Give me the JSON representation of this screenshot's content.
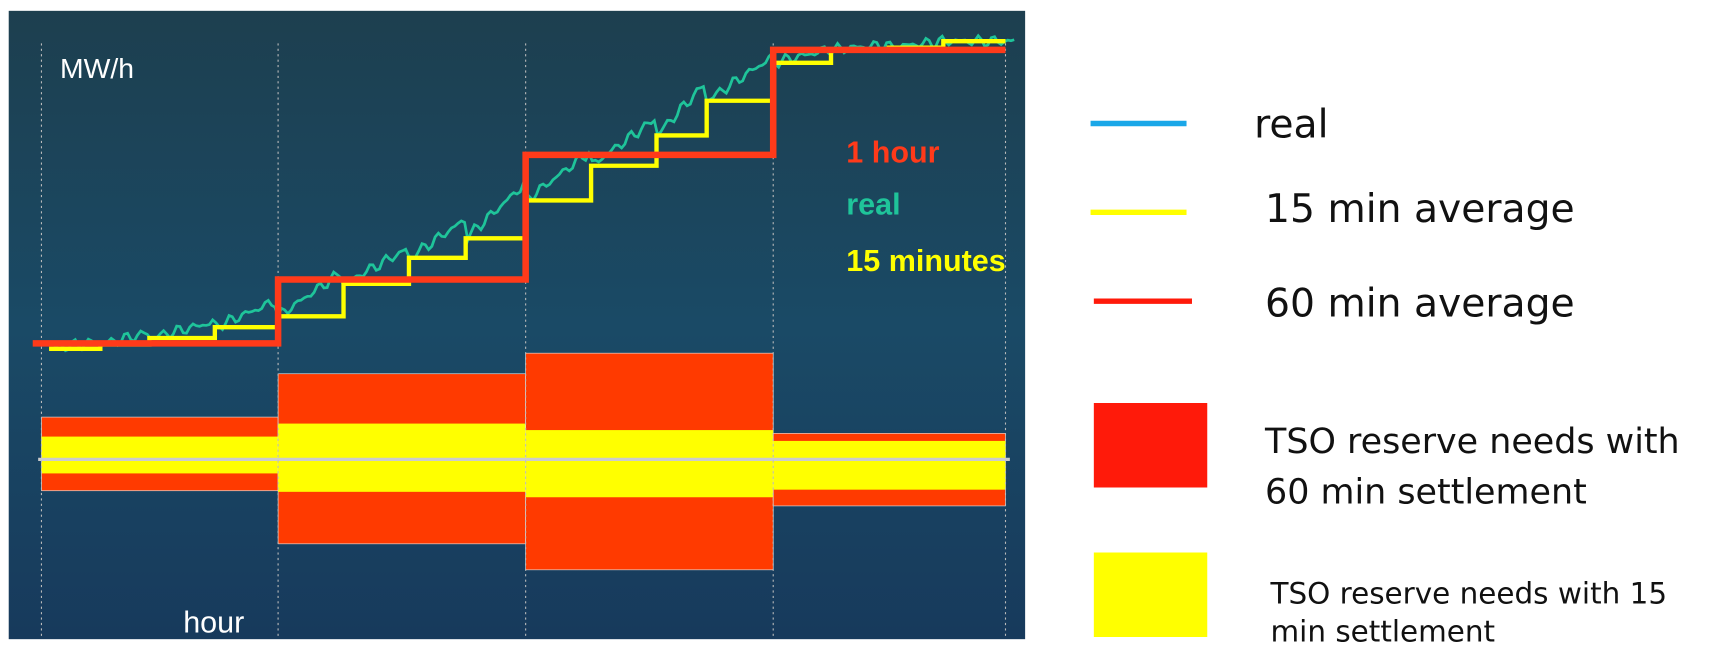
{
  "panel": {
    "y_axis_label": "MW/h",
    "x_axis_label": "hour",
    "annotations": [
      "1 hour",
      "real",
      "15 minutes"
    ]
  },
  "legend": [
    {
      "label": "real"
    },
    {
      "label": "15 min average"
    },
    {
      "label": "60 min average"
    },
    {
      "label_lines": [
        "TSO reserve needs with",
        "60 min settlement"
      ]
    },
    {
      "label_lines": [
        "TSO reserve needs with 15",
        "min settlement"
      ]
    }
  ]
}
